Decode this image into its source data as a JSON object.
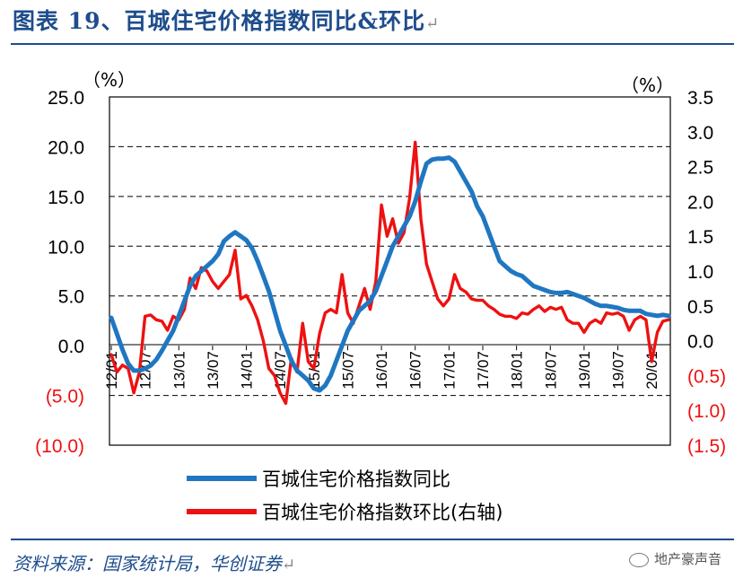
{
  "figure": {
    "title": "图表 19、百城住宅价格指数同比&环比",
    "source": "资料来源：国家统计局，华创证券",
    "watermark": "地产豪声音",
    "return_mark": "↵"
  },
  "chart_data": {
    "type": "line",
    "left_axis": {
      "unit_label": "（%）",
      "ylim": [
        -10,
        25
      ],
      "tick_labels": [
        "25.0",
        "20.0",
        "15.0",
        "10.0",
        "5.0",
        "0.0",
        "(5.0)",
        "(10.0)"
      ],
      "tick_values": [
        25,
        20,
        15,
        10,
        5,
        0,
        -5,
        -10
      ]
    },
    "right_axis": {
      "unit_label": "（%）",
      "ylim": [
        -1.5,
        3.5
      ],
      "tick_labels": [
        "3.5",
        "3.0",
        "2.5",
        "2.0",
        "1.5",
        "1.0",
        "0.5",
        "0.0",
        "(0.5)",
        "(1.0)",
        "(1.5)"
      ],
      "tick_values": [
        3.5,
        3.0,
        2.5,
        2.0,
        1.5,
        1.0,
        0.5,
        0.0,
        -0.5,
        -1.0,
        -1.5
      ]
    },
    "x_tick_labels": [
      "12/01",
      "12/07",
      "13/01",
      "13/07",
      "14/01",
      "14/07",
      "15/01",
      "15/07",
      "16/01",
      "16/07",
      "17/01",
      "17/07",
      "18/01",
      "18/07",
      "19/01",
      "19/07",
      "20/01"
    ],
    "series": [
      {
        "name": "百城住宅价格指数同比",
        "axis": "left",
        "color": "#1f77c2",
        "values": [
          2.8,
          1.2,
          -0.4,
          -1.8,
          -2.5,
          -2.5,
          -2.3,
          -2.0,
          -1.4,
          -0.5,
          0.5,
          1.5,
          3.0,
          4.5,
          6.0,
          7.0,
          7.5,
          8.0,
          8.5,
          9.2,
          10.5,
          11.0,
          11.4,
          11.0,
          10.6,
          9.8,
          8.5,
          7.0,
          5.5,
          3.5,
          1.5,
          0.0,
          -1.5,
          -2.5,
          -3.0,
          -3.5,
          -4.3,
          -4.5,
          -4.0,
          -3.0,
          -1.5,
          0.0,
          1.5,
          2.5,
          3.5,
          4.0,
          4.5,
          5.5,
          7.0,
          8.5,
          10.0,
          11.0,
          12.0,
          13.0,
          14.5,
          16.5,
          18.3,
          18.7,
          18.8,
          18.8,
          18.9,
          18.5,
          17.5,
          16.5,
          15.5,
          14.0,
          13.0,
          11.5,
          10.0,
          8.5,
          8.0,
          7.5,
          7.2,
          7.0,
          6.5,
          6.0,
          5.8,
          5.6,
          5.4,
          5.3,
          5.3,
          5.4,
          5.2,
          5.0,
          4.8,
          4.5,
          4.2,
          4.0,
          4.0,
          3.9,
          3.8,
          3.6,
          3.5,
          3.5,
          3.5,
          3.2,
          3.1,
          3.0,
          3.1,
          3.0
        ]
      },
      {
        "name": "百城住宅价格指数环比(右轴)",
        "axis": "right",
        "color": "#ee1111",
        "values": [
          -0.2,
          -0.45,
          -0.35,
          -0.4,
          -0.75,
          -0.45,
          0.35,
          0.37,
          0.3,
          0.28,
          0.15,
          0.35,
          0.3,
          0.45,
          0.9,
          0.75,
          1.05,
          1.0,
          0.85,
          0.75,
          0.85,
          0.95,
          1.3,
          0.6,
          0.65,
          0.5,
          0.3,
          0.0,
          -0.4,
          -0.5,
          -0.75,
          -0.9,
          -0.25,
          -0.45,
          0.25,
          -0.3,
          -0.4,
          0.1,
          0.4,
          0.45,
          0.4,
          0.95,
          0.4,
          0.25,
          0.5,
          0.75,
          0.45,
          0.85,
          1.95,
          1.5,
          1.75,
          1.4,
          1.55,
          2.05,
          2.85,
          1.75,
          1.1,
          0.85,
          0.6,
          0.5,
          0.6,
          0.95,
          0.75,
          0.7,
          0.6,
          0.58,
          0.58,
          0.5,
          0.45,
          0.38,
          0.35,
          0.35,
          0.32,
          0.4,
          0.38,
          0.45,
          0.5,
          0.42,
          0.48,
          0.45,
          0.48,
          0.3,
          0.25,
          0.25,
          0.12,
          0.25,
          0.3,
          0.25,
          0.4,
          0.38,
          0.4,
          0.35,
          0.15,
          0.3,
          0.35,
          0.3,
          -0.3,
          0.12,
          0.28,
          0.3
        ]
      }
    ]
  }
}
